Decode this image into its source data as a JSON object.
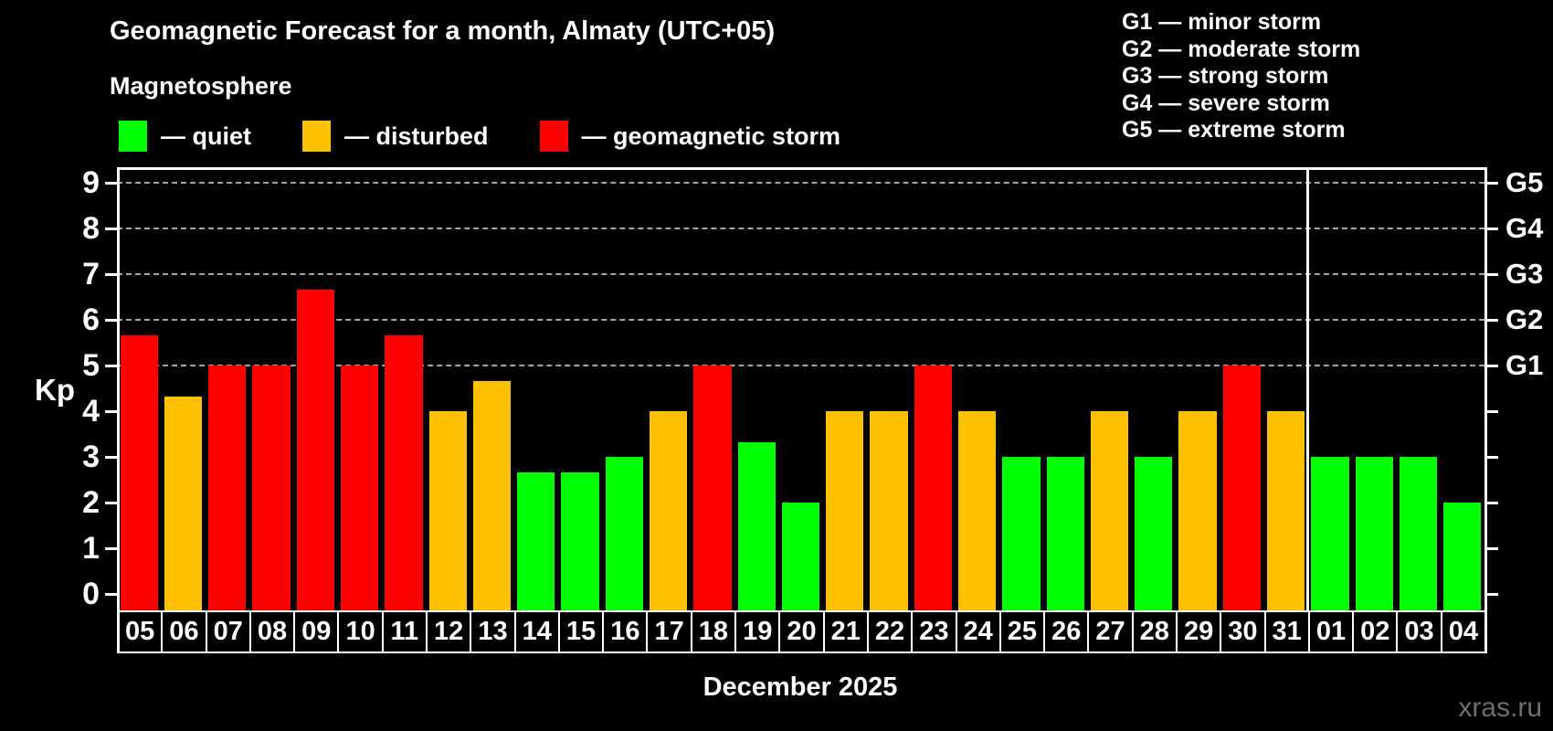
{
  "header": {
    "title": "Geomagnetic Forecast for a month, Almaty (UTC+05)",
    "subtitle": "Magnetosphere"
  },
  "legend": {
    "items": [
      {
        "name": "quiet",
        "label": "— quiet",
        "color": "#00ff00"
      },
      {
        "name": "disturbed",
        "label": "— disturbed",
        "color": "#ffc000"
      },
      {
        "name": "storm",
        "label": "— geomagnetic storm",
        "color": "#ff0000"
      }
    ]
  },
  "g_scale_legend": {
    "items": [
      {
        "label": "G1 — minor storm"
      },
      {
        "label": "G2 — moderate storm"
      },
      {
        "label": "G3 — strong storm"
      },
      {
        "label": "G4 — severe storm"
      },
      {
        "label": "G5 — extreme storm"
      }
    ]
  },
  "chart_data": {
    "type": "bar",
    "title": "Geomagnetic Forecast for a month, Almaty (UTC+05)",
    "ylabel": "Kp",
    "xlabel": "December 2025",
    "ylim": [
      0,
      9.35
    ],
    "yticks": [
      0,
      1,
      2,
      3,
      4,
      5,
      6,
      7,
      8,
      9
    ],
    "gridlines": [
      5,
      6,
      7,
      8,
      9
    ],
    "grid": "dashed, horizontal, at storm levels only",
    "right_axis_labels": [
      {
        "value": 5,
        "label": "G1"
      },
      {
        "value": 6,
        "label": "G2"
      },
      {
        "value": 7,
        "label": "G3"
      },
      {
        "value": 8,
        "label": "G4"
      },
      {
        "value": 9,
        "label": "G5"
      }
    ],
    "categories": [
      "05",
      "06",
      "07",
      "08",
      "09",
      "10",
      "11",
      "12",
      "13",
      "14",
      "15",
      "16",
      "17",
      "18",
      "19",
      "20",
      "21",
      "22",
      "23",
      "24",
      "25",
      "26",
      "27",
      "28",
      "29",
      "30",
      "31",
      "01",
      "02",
      "03",
      "04"
    ],
    "values": [
      5.67,
      4.33,
      5,
      5,
      6.67,
      5,
      5.67,
      4,
      4.67,
      2.67,
      2.67,
      3,
      4,
      5,
      3.33,
      2,
      4,
      4,
      5,
      4,
      3,
      3,
      4,
      3,
      4,
      5,
      4,
      3,
      3,
      3,
      2
    ],
    "levels": [
      "storm",
      "disturbed",
      "storm",
      "storm",
      "storm",
      "storm",
      "storm",
      "disturbed",
      "disturbed",
      "quiet",
      "quiet",
      "quiet",
      "disturbed",
      "storm",
      "quiet",
      "quiet",
      "disturbed",
      "disturbed",
      "storm",
      "disturbed",
      "quiet",
      "quiet",
      "disturbed",
      "quiet",
      "disturbed",
      "storm",
      "disturbed",
      "quiet",
      "quiet",
      "quiet",
      "quiet"
    ],
    "month_divider_after_index": 26
  },
  "footer": {
    "watermark": "xras.ru"
  }
}
